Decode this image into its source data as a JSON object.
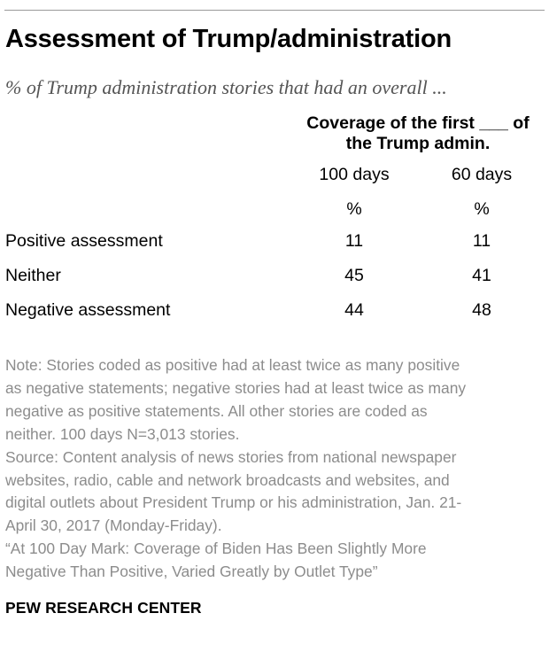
{
  "chart_data": {
    "type": "table",
    "title": "Assessment of Trump/administration",
    "subtitle": "% of Trump administration stories that had an overall ...",
    "column_group_header": [
      "Coverage of the first ___ of",
      "the Trump admin."
    ],
    "columns": [
      "100 days",
      "60 days"
    ],
    "units": [
      "%",
      "%"
    ],
    "rows": [
      {
        "label": "Positive assessment",
        "values": [
          "11",
          "11"
        ]
      },
      {
        "label": "Neither",
        "values": [
          "45",
          "41"
        ]
      },
      {
        "label": "Negative assessment",
        "values": [
          "44",
          "48"
        ]
      }
    ]
  },
  "notes": [
    "Note: Stories coded as positive had at least twice as many positive",
    "as negative statements; negative stories had at least twice as many",
    "negative as positive statements. All other stories are coded as",
    "neither. 100 days N=3,013 stories.",
    "Source: Content analysis of news stories from national newspaper",
    "websites, radio, cable and network broadcasts and websites, and",
    "digital outlets about President Trump or his administration, Jan. 21-",
    "April 30, 2017 (Monday-Friday).",
    "“At 100 Day Mark: Coverage of Biden Has Been Slightly More",
    "Negative Than Positive, Varied Greatly by Outlet Type”"
  ],
  "source_logo": "PEW RESEARCH CENTER"
}
